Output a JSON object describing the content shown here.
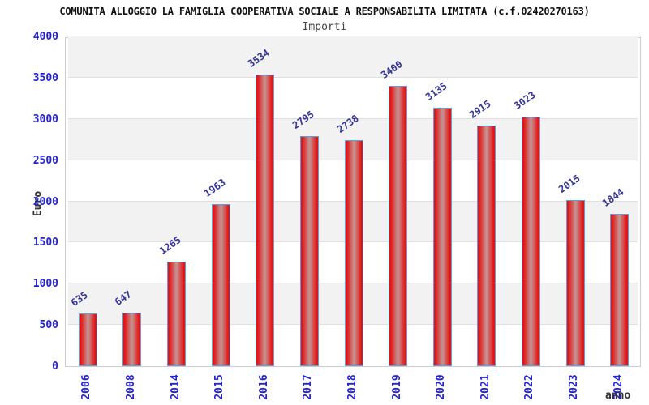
{
  "chart_data": {
    "type": "bar",
    "title": "COMUNITA ALLOGGIO LA FAMIGLIA COOPERATIVA SOCIALE A RESPONSABILITA LIMITATA (c.f.02420270163)",
    "subtitle": "Importi",
    "xlabel": "anno",
    "ylabel": "Euro",
    "categories": [
      "2006",
      "2008",
      "2014",
      "2015",
      "2016",
      "2017",
      "2018",
      "2019",
      "2020",
      "2021",
      "2022",
      "2023",
      "2024"
    ],
    "values": [
      635,
      647,
      1265,
      1963,
      3534,
      2795,
      2738,
      3400,
      3135,
      2915,
      3023,
      2015,
      1844
    ],
    "ylim": [
      0,
      4000
    ],
    "ytick_step": 500,
    "yticks": [
      0,
      500,
      1000,
      1500,
      2000,
      2500,
      3000,
      3500,
      4000
    ],
    "grid": "horizontal-alternating-bands",
    "legend": "none",
    "colors": {
      "title": "#111111",
      "subtitle": "#444444",
      "axis_title": "#333333",
      "tick_label": "#2222dd",
      "value_label": "#333399",
      "bar_edge": "#e31616",
      "bar_center": "#c59090",
      "bar_border": "#55a0e6",
      "band": "#f2f2f2",
      "grid": "#e0e0e0",
      "frame": "#cccccc"
    }
  }
}
